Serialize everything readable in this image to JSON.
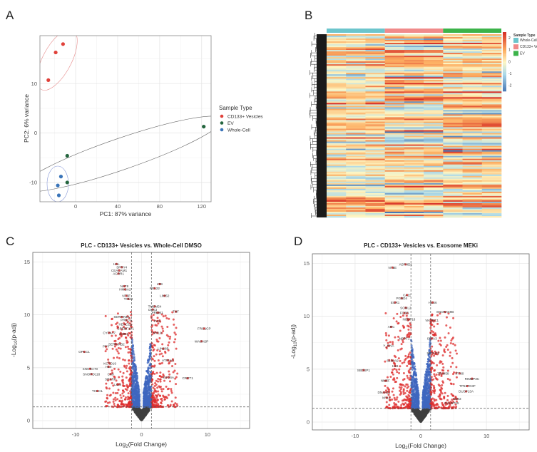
{
  "panels": {
    "a": "A",
    "b": "B",
    "c": "C",
    "d": "D"
  },
  "chart_data": [
    {
      "panel": "A",
      "type": "scatter",
      "xlabel": "PC1: 87% variance",
      "ylabel": "PC2: 6% variance",
      "xlim": [
        -34,
        129
      ],
      "ylim": [
        -13.9,
        19.7
      ],
      "xticks": [
        0,
        40,
        80,
        120
      ],
      "yticks": [
        -10,
        0,
        10
      ],
      "grid": true,
      "legend": {
        "title": "Sample Type",
        "placement": "right"
      },
      "series": [
        {
          "name": "CD133+ Vesicles",
          "color": "#e0413a",
          "points": [
            [
              -12,
              18
            ],
            [
              -19,
              16.3
            ],
            [
              -26,
              10.7
            ]
          ]
        },
        {
          "name": "EV",
          "color": "#24653e",
          "points": [
            [
              122,
              1.3
            ],
            [
              -8,
              -4.6
            ],
            [
              -8,
              -10
            ]
          ]
        },
        {
          "name": "Whole-Cell",
          "color": "#3a74b9",
          "points": [
            [
              -14,
              -8.8
            ],
            [
              -17,
              -10.6
            ],
            [
              -16,
              -12.6
            ]
          ]
        }
      ]
    },
    {
      "panel": "B",
      "type": "heatmap",
      "column_groups": [
        {
          "name": "Whole-Cell",
          "color": "#6cc5cc",
          "columns": 3
        },
        {
          "name": "CD133+ Vesicles",
          "color": "#f08a8a",
          "columns": 3
        },
        {
          "name": "EV",
          "color": "#3cb34a",
          "columns": 3
        }
      ],
      "legend_title": "Sample Type",
      "color_scale": {
        "min": -2.5,
        "max": 2.5,
        "ticks": [
          2,
          1,
          0,
          -1,
          -2
        ],
        "low": "#4575b4",
        "mid": "#fdf6c4",
        "high": "#d73027"
      },
      "row_dendrogram": true
    },
    {
      "panel": "C",
      "type": "scatter",
      "title": "PLC - CD133+ Vesicles vs. Whole-Cell DMSO",
      "xlabel": "Log2(Fold Change)",
      "ylabel": "-Log10(p-adj)",
      "xlim": [
        -16.5,
        16.4
      ],
      "ylim": [
        -0.74,
        15.9
      ],
      "xticks": [
        -10,
        0,
        10
      ],
      "yticks": [
        0,
        5,
        10,
        15
      ],
      "fc_threshold": 1.5,
      "p_threshold": 1.3,
      "colors": {
        "ns": "#404040",
        "p_only": "#3f67bf",
        "fc_only": "#4caa4c",
        "both": "#dd2c2c"
      },
      "labeled_genes": [
        {
          "gene": "HAL",
          "x": -3.8,
          "y": 14.8
        },
        {
          "gene": "SPRY4",
          "x": -3.0,
          "y": 14.5
        },
        {
          "gene": "CEACAM1",
          "x": -3.4,
          "y": 14.2
        },
        {
          "gene": "AGRR1",
          "x": -3.5,
          "y": 13.9
        },
        {
          "gene": "NAT8",
          "x": -2.6,
          "y": 12.7
        },
        {
          "gene": "HMGA2",
          "x": -2.5,
          "y": 12.4
        },
        {
          "gene": "NT5E",
          "x": -2.3,
          "y": 11.8
        },
        {
          "gene": "TGM2",
          "x": -2.0,
          "y": 11.5
        },
        {
          "gene": "LTB",
          "x": 2.75,
          "y": 12.9
        },
        {
          "gene": "REL22",
          "x": 2.0,
          "y": 12.5
        },
        {
          "gene": "LIMS2",
          "x": 3.5,
          "y": 11.8
        },
        {
          "gene": "TMEM54",
          "x": 2.0,
          "y": 10.8
        },
        {
          "gene": "DKK3",
          "x": 1.7,
          "y": 10.5
        },
        {
          "gene": "PRDM1",
          "x": 2.4,
          "y": 10.2
        },
        {
          "gene": "TNF",
          "x": 5.2,
          "y": 10.3
        },
        {
          "gene": "FAS",
          "x": 2.4,
          "y": 9.4
        },
        {
          "gene": "SERPINE1",
          "x": -3.0,
          "y": 9.8
        },
        {
          "gene": "PRKCA",
          "x": -2.3,
          "y": 9.5
        },
        {
          "gene": "HDAC11",
          "x": -2.5,
          "y": 9.1
        },
        {
          "gene": "SREBF1P1",
          "x": -2.4,
          "y": 8.7
        },
        {
          "gene": "FRG1CP",
          "x": 9.5,
          "y": 8.7
        },
        {
          "gene": "WASH2P",
          "x": 9.1,
          "y": 7.5
        },
        {
          "gene": "CYP4A7",
          "x": -4.9,
          "y": 8.3
        },
        {
          "gene": "EGR1",
          "x": -2.7,
          "y": 8.2
        },
        {
          "gene": "MYL9",
          "x": 2.4,
          "y": 8.3
        },
        {
          "gene": "PPY",
          "x": -5.4,
          "y": 7.0
        },
        {
          "gene": "SERPINB2",
          "x": -3.8,
          "y": 7.2
        },
        {
          "gene": "OPCC1",
          "x": -8.7,
          "y": 6.5
        },
        {
          "gene": "KCTD19",
          "x": -4.8,
          "y": 5.4
        },
        {
          "gene": "H19",
          "x": -5.0,
          "y": 5.1
        },
        {
          "gene": "SNORA70",
          "x": -7.8,
          "y": 4.9
        },
        {
          "gene": "SNORD118",
          "x": -7.6,
          "y": 4.4
        },
        {
          "gene": "CA9",
          "x": -4.7,
          "y": 4.4
        },
        {
          "gene": "SRARP",
          "x": -4.7,
          "y": 3.9
        },
        {
          "gene": "LGI4",
          "x": -3.6,
          "y": 3.4
        },
        {
          "gene": "TCHHL",
          "x": -6.7,
          "y": 2.8
        },
        {
          "gene": "ATP1A2",
          "x": 4.0,
          "y": 5.7
        },
        {
          "gene": "KIF26A",
          "x": 4.1,
          "y": 4.1
        },
        {
          "gene": "CRCT1",
          "x": 7.0,
          "y": 4.0
        },
        {
          "gene": "LIN28B",
          "x": 3.3,
          "y": 6.8
        }
      ]
    },
    {
      "panel": "D",
      "type": "scatter",
      "title": "PLC - CD133+ Vesicles vs. Exosome MEKi",
      "xlabel": "Log2(Fold Change)",
      "ylabel": "-Log10(p-adj)",
      "xlim": [
        -16.5,
        16.5
      ],
      "ylim": [
        -0.74,
        15.9
      ],
      "xticks": [
        -10,
        0,
        10
      ],
      "yticks": [
        0,
        5,
        10,
        15
      ],
      "fc_threshold": 1.5,
      "p_threshold": 1.3,
      "colors": {
        "ns": "#404040",
        "p_only": "#3f67bf",
        "fc_only": "#4caa4c",
        "both": "#dd2c2c"
      },
      "labeled_genes": [
        {
          "gene": "ASPHD1",
          "x": -2.3,
          "y": 14.9
        },
        {
          "gene": "NT5E",
          "x": -4.3,
          "y": 14.6
        },
        {
          "gene": "CA11",
          "x": -2.1,
          "y": 12.0
        },
        {
          "gene": "PGBD4",
          "x": -2.9,
          "y": 11.7
        },
        {
          "gene": "EGR1",
          "x": -3.9,
          "y": 11.3
        },
        {
          "gene": "HES6",
          "x": 1.8,
          "y": 11.3
        },
        {
          "gene": "SCML2",
          "x": -2.3,
          "y": 10.8
        },
        {
          "gene": "FOSB",
          "x": -2.5,
          "y": 10.3
        },
        {
          "gene": "SNORA59B",
          "x": 3.7,
          "y": 10.4
        },
        {
          "gene": "NUDT16",
          "x": -1.8,
          "y": 9.7
        },
        {
          "gene": "VKORC1",
          "x": 1.7,
          "y": 9.6
        },
        {
          "gene": "ARC",
          "x": -4.5,
          "y": 9.0
        },
        {
          "gene": "NBPF1",
          "x": -2.5,
          "y": 7.9
        },
        {
          "gene": "SFTA3",
          "x": 1.7,
          "y": 7.9
        },
        {
          "gene": "Y_RNA",
          "x": -4.9,
          "y": 7.2
        },
        {
          "gene": "SPTLC2",
          "x": 1.85,
          "y": 6.5
        },
        {
          "gene": "S100A9",
          "x": -4.3,
          "y": 5.8
        },
        {
          "gene": "H19",
          "x": -3.9,
          "y": 5.3
        },
        {
          "gene": "SBDSP1",
          "x": -8.7,
          "y": 4.9
        },
        {
          "gene": "TRIM58",
          "x": 3.4,
          "y": 4.6
        },
        {
          "gene": "IFT80",
          "x": 5.9,
          "y": 4.6
        },
        {
          "gene": "RIMBP3C",
          "x": 7.8,
          "y": 4.1
        },
        {
          "gene": "TP53TG3F",
          "x": 7.1,
          "y": 3.4
        },
        {
          "gene": "DUSP13A",
          "x": 6.9,
          "y": 2.9
        },
        {
          "gene": "NMEF",
          "x": -5.4,
          "y": 3.9
        },
        {
          "gene": "DNAH11",
          "x": -5.6,
          "y": 2.8
        },
        {
          "gene": "MYL1",
          "x": -5.2,
          "y": 2.3
        },
        {
          "gene": "GALNT15",
          "x": 4.7,
          "y": 1.8
        },
        {
          "gene": "CD83",
          "x": 5.5,
          "y": 2.2
        }
      ]
    }
  ]
}
